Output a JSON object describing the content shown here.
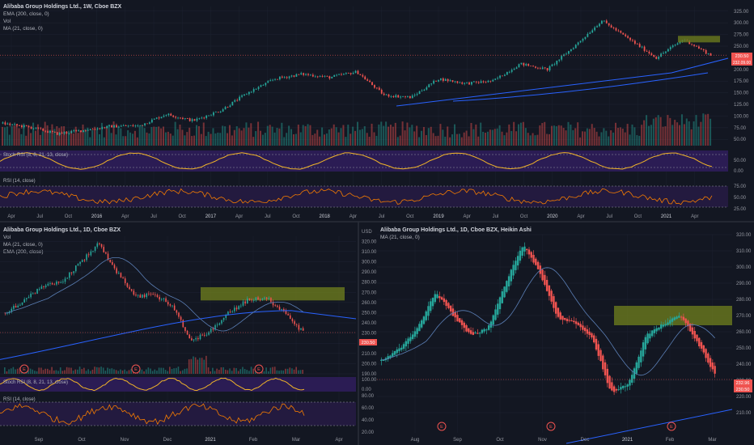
{
  "colors": {
    "background": "#131722",
    "up": "#26a69a",
    "down": "#ef5350",
    "text": "#b2b5be",
    "axis_text": "#9598a1",
    "grid": "#1f2433",
    "border": "#2a2e39",
    "stoch_fill": "#2b1c54",
    "stoch_line": "#f0b429",
    "rsi_fill": "#231a3f",
    "rsi_line": "#f57c00",
    "ema_line": "#2962ff",
    "ma_line": "#5b7fb6",
    "zone_fill": "#6b7a1e",
    "price_label_bg": "#ef5350",
    "earnings_marker": "#ef5350"
  },
  "panels": {
    "weekly": {
      "title": "Alibaba Group Holdings Ltd., 1W, Cboe BZX",
      "legend": [
        "EMA (200, close, 0)",
        "Vol",
        "MA (21, close, 0)"
      ],
      "stoch_label": "Stoch RSI (8, 8, 21, 13, close)",
      "rsi_label": "RSI (14, close)",
      "price_ticks": [
        "325.00",
        "300.00",
        "275.00",
        "250.00",
        "225.00",
        "200.00",
        "175.00",
        "150.00",
        "125.00",
        "100.00",
        "75.00",
        "50.00"
      ],
      "stoch_ticks": [
        "50.00",
        "0.00"
      ],
      "rsi_ticks": [
        "75.00",
        "50.00",
        "25.00"
      ],
      "price_labels": [
        "230.50",
        "232.09.00"
      ],
      "time_labels": [
        "Apr",
        "Jul",
        "Oct",
        "2016",
        "Apr",
        "Jul",
        "Oct",
        "2017",
        "Apr",
        "Jul",
        "Oct",
        "2018",
        "Apr",
        "Jul",
        "Oct",
        "2019",
        "Apr",
        "Jul",
        "Oct",
        "2020",
        "Apr",
        "Jul",
        "Oct",
        "2021",
        "Apr"
      ]
    },
    "daily": {
      "title": "Alibaba Group Holdings Ltd., 1D, Cboe BZX",
      "legend": [
        "Vol",
        "MA (21, close, 0)",
        "EMA (200, close)"
      ],
      "stoch_label": "Stoch RSI (8, 8, 21, 13, close)",
      "rsi_label": "RSI (14, close)",
      "currency": "USD",
      "price_ticks": [
        "320.00",
        "310.00",
        "300.00",
        "290.00",
        "280.00",
        "270.00",
        "260.00",
        "250.00",
        "240.00",
        "230.00",
        "220.00",
        "210.00",
        "200.00",
        "190.00"
      ],
      "stoch_ticks": [
        "100.00",
        "0.00"
      ],
      "rsi_ticks": [
        "80.00",
        "60.00",
        "40.00",
        "20.00"
      ],
      "price_label": "230.50",
      "earnings": [
        "E",
        "E",
        "E"
      ],
      "time_labels": [
        "Sep",
        "Oct",
        "Nov",
        "Dec",
        "2021",
        "Feb",
        "Mar",
        "Apr"
      ]
    },
    "heikin": {
      "title": "Alibaba Group Holdings Ltd., 1D, Cboe BZX, Heikin Ashi",
      "legend": [
        "MA (21, close, 0)"
      ],
      "price_ticks": [
        "320.00",
        "310.00",
        "300.00",
        "290.00",
        "280.00",
        "270.00",
        "260.00",
        "250.00",
        "240.00",
        "230.00",
        "220.00",
        "210.00"
      ],
      "price_labels": [
        "232.96",
        "230.50"
      ],
      "earnings": [
        "E",
        "E",
        "E"
      ],
      "time_labels": [
        "Aug",
        "Sep",
        "Oct",
        "Nov",
        "Dec",
        "2021",
        "Feb",
        "Mar"
      ]
    }
  },
  "chart_data": [
    {
      "type": "candlestick",
      "title": "Alibaba Group Holdings Ltd., 1W, Cboe BZX",
      "x": [
        "Apr",
        "Jul",
        "Oct",
        "2016",
        "Apr",
        "Jul",
        "Oct",
        "2017",
        "Apr",
        "Jul",
        "Oct",
        "2018",
        "Apr",
        "Jul",
        "Oct",
        "2019",
        "Apr",
        "Jul",
        "Oct",
        "2020",
        "Apr",
        "Jul",
        "Oct",
        "2021",
        "Apr"
      ],
      "close_path": [
        [
          2015.25,
          84
        ],
        [
          2015.5,
          76
        ],
        [
          2015.75,
          62
        ],
        [
          2016.0,
          70
        ],
        [
          2016.25,
          78
        ],
        [
          2016.5,
          79
        ],
        [
          2016.75,
          104
        ],
        [
          2017.0,
          90
        ],
        [
          2017.25,
          112
        ],
        [
          2017.5,
          150
        ],
        [
          2017.75,
          180
        ],
        [
          2018.0,
          190
        ],
        [
          2018.25,
          183
        ],
        [
          2018.5,
          195
        ],
        [
          2018.75,
          145
        ],
        [
          2019.0,
          140
        ],
        [
          2019.25,
          180
        ],
        [
          2019.5,
          170
        ],
        [
          2019.75,
          175
        ],
        [
          2020.0,
          212
        ],
        [
          2020.25,
          200
        ],
        [
          2020.5,
          250
        ],
        [
          2020.75,
          305
        ],
        [
          2020.85,
          265
        ],
        [
          2021.0,
          225
        ],
        [
          2021.1,
          265
        ],
        [
          2021.18,
          230.5
        ]
      ],
      "resistance_zone": [
        258,
        272
      ],
      "last_price": 230.5,
      "ylim": [
        40,
        335
      ],
      "secondary_ylabel_values": [
        325,
        300,
        275,
        250,
        225,
        200,
        175,
        150,
        125,
        100,
        75,
        50
      ]
    },
    {
      "type": "candlestick",
      "title": "Alibaba Group Holdings Ltd., 1D, Cboe BZX",
      "x": [
        "Sep",
        "Oct",
        "Nov",
        "Dec",
        "2021",
        "Feb",
        "Mar",
        "Apr"
      ],
      "close_path": [
        [
          "Aug 20",
          250
        ],
        [
          "Sep 1",
          262
        ],
        [
          "Sep 15",
          275
        ],
        [
          "Oct 1",
          280
        ],
        [
          "Oct 15",
          298
        ],
        [
          "Oct 27",
          318
        ],
        [
          "Nov 5",
          290
        ],
        [
          "Nov 20",
          265
        ],
        [
          "Dec 1",
          268
        ],
        [
          "Dec 15",
          257
        ],
        [
          "Dec 23",
          222
        ],
        [
          "Jan 1",
          232
        ],
        [
          "Jan 15",
          250
        ],
        [
          "Feb 1",
          262
        ],
        [
          "Feb 15",
          265
        ],
        [
          "Feb 25",
          250
        ],
        [
          "Mar 8",
          230.5
        ]
      ],
      "resistance_zone": [
        262,
        275
      ],
      "last_price": 230.5,
      "ylim": [
        190,
        325
      ]
    },
    {
      "type": "candlestick",
      "title": "Alibaba Group Holdings Ltd., 1D, Cboe BZX, Heikin Ashi",
      "x": [
        "Aug",
        "Sep",
        "Oct",
        "Nov",
        "Dec",
        "2021",
        "Feb",
        "Mar"
      ],
      "close_path": [
        [
          "Jul 20",
          242
        ],
        [
          "Aug 1",
          250
        ],
        [
          "Aug 15",
          262
        ],
        [
          "Aug 25",
          285
        ],
        [
          "Sep 5",
          270
        ],
        [
          "Sep 20",
          258
        ],
        [
          "Oct 1",
          262
        ],
        [
          "Oct 15",
          290
        ],
        [
          "Oct 28",
          315
        ],
        [
          "Nov 5",
          295
        ],
        [
          "Nov 20",
          268
        ],
        [
          "Dec 5",
          266
        ],
        [
          "Dec 20",
          255
        ],
        [
          "Dec 28",
          222
        ],
        [
          "Jan 10",
          228
        ],
        [
          "Jan 25",
          258
        ],
        [
          "Feb 5",
          265
        ],
        [
          "Feb 15",
          270
        ],
        [
          "Feb 25",
          252
        ],
        [
          "Mar 8",
          232
        ]
      ],
      "resistance_zone": [
        264,
        276
      ],
      "last_price": 230.5,
      "ylim": [
        205,
        325
      ]
    }
  ]
}
